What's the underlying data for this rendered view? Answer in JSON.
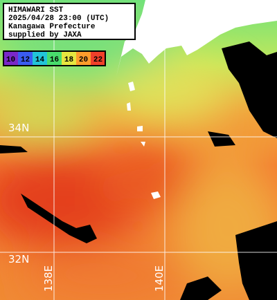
{
  "header": {
    "lines": [
      "HIMAWARI SST",
      "2025/04/28 23:00 (UTC)",
      "Kanagawa Prefecture",
      "supplied by JAXA"
    ]
  },
  "legend": [
    {
      "label": "10",
      "color": "#7a28c8"
    },
    {
      "label": "12",
      "color": "#3a5cf0"
    },
    {
      "label": "14",
      "color": "#22c4d8"
    },
    {
      "label": "16",
      "color": "#48dc6c"
    },
    {
      "label": "18",
      "color": "#e6e640"
    },
    {
      "label": "20",
      "color": "#ff9c2c"
    },
    {
      "label": "22",
      "color": "#f0402a"
    }
  ],
  "grid_labels": {
    "lat": [
      "34N",
      "32N"
    ],
    "lon": [
      "138E",
      "140E"
    ]
  }
}
